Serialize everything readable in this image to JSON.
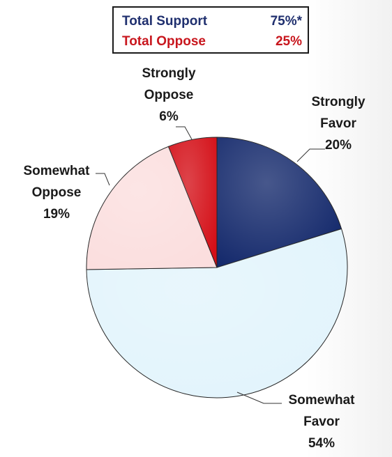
{
  "summary": {
    "support": {
      "label": "Total Support",
      "value": "75%*",
      "color": "#1f2f6e"
    },
    "oppose": {
      "label": "Total Oppose",
      "value": "25%",
      "color": "#c8161d"
    }
  },
  "chart_data": {
    "type": "pie",
    "title": "",
    "slices": [
      {
        "name": "Strongly Favor",
        "label_lines": [
          "Strongly",
          "Favor",
          "20%"
        ],
        "value": 20,
        "color": "#13286b"
      },
      {
        "name": "Somewhat Favor",
        "label_lines": [
          "Somewhat",
          "Favor",
          "54%"
        ],
        "value": 54,
        "color": "#e2f4fc"
      },
      {
        "name": "Somewhat Oppose",
        "label_lines": [
          "Somewhat",
          "Oppose",
          "19%"
        ],
        "value": 19,
        "color": "#fbdede"
      },
      {
        "name": "Strongly Oppose",
        "label_lines": [
          "Strongly",
          "Oppose",
          "6%"
        ],
        "value": 6,
        "color": "#d40f17"
      }
    ],
    "start_angle_deg": 0,
    "direction": "clockwise",
    "legend": "none"
  }
}
